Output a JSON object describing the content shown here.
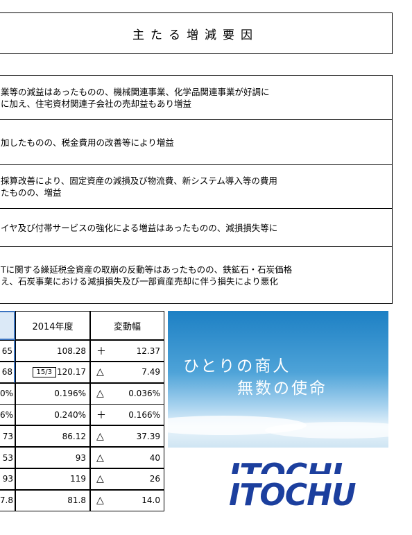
{
  "header": {
    "title": "主たる増減要因"
  },
  "reasons": [
    [
      "業等の減益はあったものの、機械関連事業、化学品関連事業が好調に",
      "に加え、住宅資材関連子会社の売却益もあり増益"
    ],
    [
      "加したものの、税金費用の改善等により増益"
    ],
    [
      "採算改善により、固定資産の減損及び物流費、新システム導入等の費用",
      "たものの、増益"
    ],
    [
      "イヤ及び付帯サービスの強化による増益はあったものの、減損損失等に"
    ],
    [
      "Tに関する繰延税金資産の取崩の反動等はあったものの、鉄鉱石・石炭価格",
      "え、石炭事業における減損損失及び一部資産売却に伴う損失により悪化"
    ]
  ],
  "table": {
    "header": [
      "2014年度",
      "変動幅"
    ],
    "rows": [
      {
        "left": "65",
        "value": "108.28",
        "sign": "＋",
        "change": "12.37"
      },
      {
        "left": "68",
        "note": "15/3",
        "value": "120.17",
        "sign": "△",
        "change": "7.49"
      },
      {
        "left": "0%",
        "value": "0.196%",
        "sign": "△",
        "change": "0.036%"
      },
      {
        "left": "6%",
        "value": "0.240%",
        "sign": "＋",
        "change": "0.166%"
      },
      {
        "left": "73",
        "value": "86.12",
        "sign": "△",
        "change": "37.39"
      },
      {
        "left": "53",
        "value": "93",
        "sign": "△",
        "change": "40"
      },
      {
        "left": "93",
        "value": "119",
        "sign": "△",
        "change": "26"
      },
      {
        "left": "7.8",
        "value": "81.8",
        "sign": "△",
        "change": "14.0"
      }
    ]
  },
  "banner": {
    "lines": [
      "ひとりの商人",
      "無数の使命"
    ]
  },
  "logo": {
    "text": "ITOCHU"
  }
}
